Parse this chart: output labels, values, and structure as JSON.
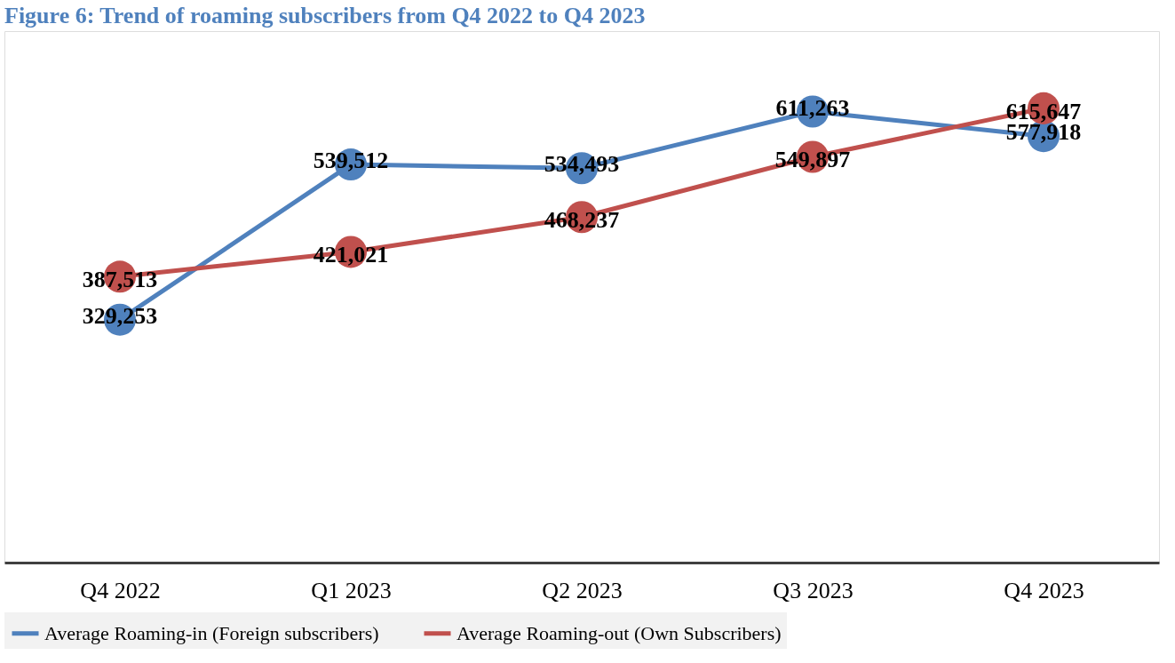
{
  "chart_data": {
    "type": "line",
    "title": "Figure 6: Trend of roaming subscribers from Q4 2022 to Q4 2023",
    "categories": [
      "Q4 2022",
      "Q1 2023",
      "Q2 2023",
      "Q3 2023",
      "Q4 2023"
    ],
    "series": [
      {
        "name": "Average Roaming-in (Foreign subscribers)",
        "color": "#4f81bd",
        "values": [
          329253,
          539512,
          534493,
          611263,
          577918
        ],
        "value_labels": [
          "329,253",
          "539,512",
          "534,493",
          "611,263",
          "577,918"
        ]
      },
      {
        "name": "Average Roaming-out (Own Subscribers)",
        "color": "#c0504d",
        "values": [
          387513,
          421021,
          468237,
          549897,
          615647
        ],
        "value_labels": [
          "387,513",
          "421,021",
          "468,237",
          "549,897",
          "615,647"
        ]
      }
    ],
    "marker": "circle",
    "legend": "bottom",
    "grid": false,
    "tick_labels": "x"
  }
}
